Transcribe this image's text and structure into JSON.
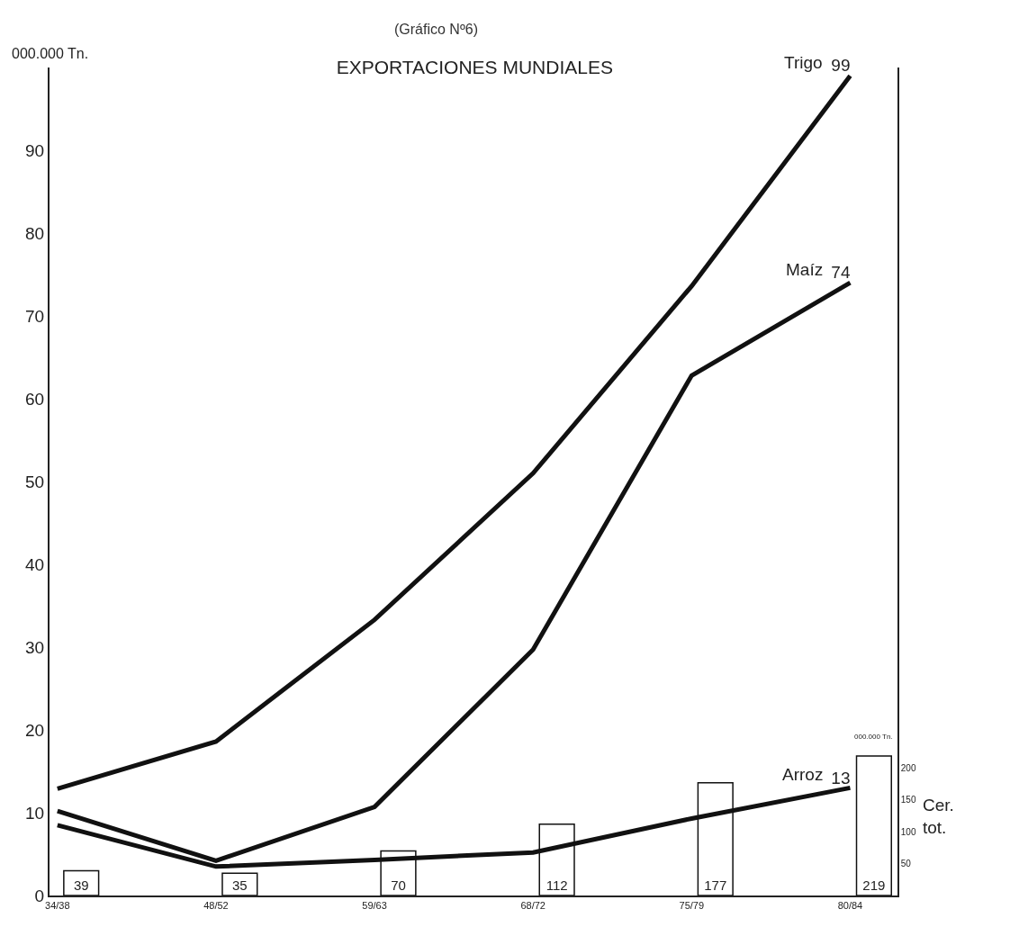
{
  "chart_data": {
    "type": "line",
    "title": "EXPORTACIONES MUNDIALES",
    "subtitle": "(Gráfico Nº6)",
    "ylabel": "000.000 Tn.",
    "y2label": "Cer. tot.",
    "annotations": [
      "000.000 Tn."
    ],
    "categories": [
      "34/38",
      "48/52",
      "59/63",
      "68/72",
      "75/79",
      "80/84"
    ],
    "series": [
      {
        "type": "bar",
        "axis": "y2",
        "color": "#ffffff",
        "values": [
          39,
          35,
          70,
          112,
          177,
          219
        ],
        "value_labels": [
          "39",
          "35",
          "70",
          "112",
          "177",
          "219"
        ]
      },
      {
        "name": "Trigo",
        "color": "#111111",
        "values": [
          12.9,
          18.6,
          33.3,
          51,
          73.6,
          99
        ],
        "value_labels": [
          null,
          null,
          null,
          null,
          null,
          "99"
        ]
      },
      {
        "name": "Maíz",
        "color": "#111111",
        "values": [
          10.2,
          4.2,
          10.7,
          29.7,
          62.8,
          74
        ],
        "value_labels": [
          null,
          null,
          null,
          null,
          null,
          "74"
        ]
      },
      {
        "name": "Arroz",
        "color": "#111111",
        "values": [
          8.5,
          3.5,
          4.3,
          5.2,
          9.3,
          13
        ],
        "value_labels": [
          null,
          null,
          null,
          null,
          null,
          "13"
        ]
      }
    ],
    "ylim": [
      0,
      100
    ],
    "yticks": [
      0,
      10,
      20,
      30,
      40,
      50,
      60,
      70,
      80,
      90
    ],
    "y2lim": [
      0,
      1300
    ],
    "y2ticks": [
      50,
      100,
      150,
      200
    ],
    "grid": false,
    "legend": false
  }
}
